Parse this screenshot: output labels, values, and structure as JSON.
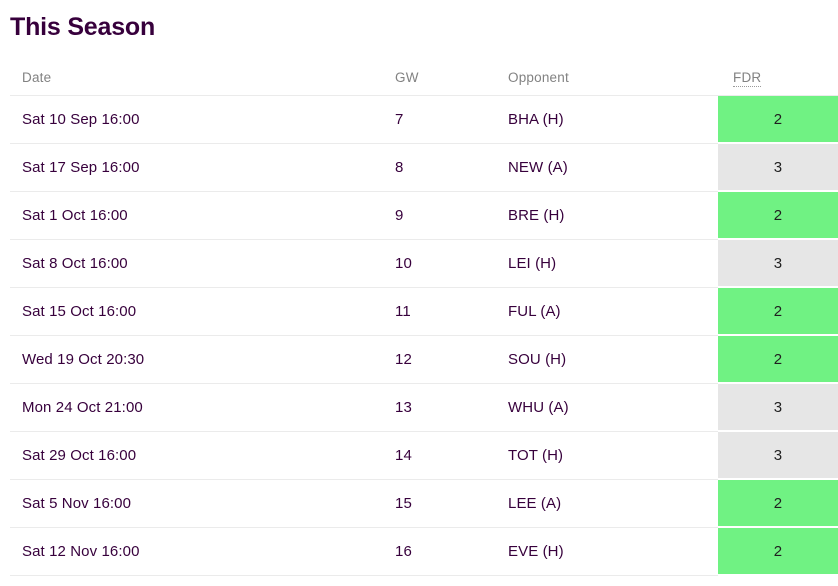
{
  "page": {
    "title": "This Season"
  },
  "table": {
    "columns": {
      "date": "Date",
      "gw": "GW",
      "opponent": "Opponent",
      "fdr": "FDR"
    },
    "rows": [
      {
        "date": "Sat 10 Sep 16:00",
        "gw": "7",
        "opponent": "BHA (H)",
        "fdr": "2"
      },
      {
        "date": "Sat 17 Sep 16:00",
        "gw": "8",
        "opponent": "NEW (A)",
        "fdr": "3"
      },
      {
        "date": "Sat 1 Oct 16:00",
        "gw": "9",
        "opponent": "BRE (H)",
        "fdr": "2"
      },
      {
        "date": "Sat 8 Oct 16:00",
        "gw": "10",
        "opponent": "LEI (H)",
        "fdr": "3"
      },
      {
        "date": "Sat 15 Oct 16:00",
        "gw": "11",
        "opponent": "FUL (A)",
        "fdr": "2"
      },
      {
        "date": "Wed 19 Oct 20:30",
        "gw": "12",
        "opponent": "SOU (H)",
        "fdr": "2"
      },
      {
        "date": "Mon 24 Oct 21:00",
        "gw": "13",
        "opponent": "WHU (A)",
        "fdr": "3"
      },
      {
        "date": "Sat 29 Oct 16:00",
        "gw": "14",
        "opponent": "TOT (H)",
        "fdr": "3"
      },
      {
        "date": "Sat 5 Nov 16:00",
        "gw": "15",
        "opponent": "LEE (A)",
        "fdr": "2"
      },
      {
        "date": "Sat 12 Nov 16:00",
        "gw": "16",
        "opponent": "EVE (H)",
        "fdr": "2"
      }
    ]
  },
  "colors": {
    "title_text": "#37003c",
    "row_text": "#37003c",
    "header_text": "#828282",
    "fdr_text": "#1f1f1f",
    "fdr_2_bg": "#70f283",
    "fdr_3_bg": "#e6e6e6",
    "divider": "#ebebeb"
  }
}
